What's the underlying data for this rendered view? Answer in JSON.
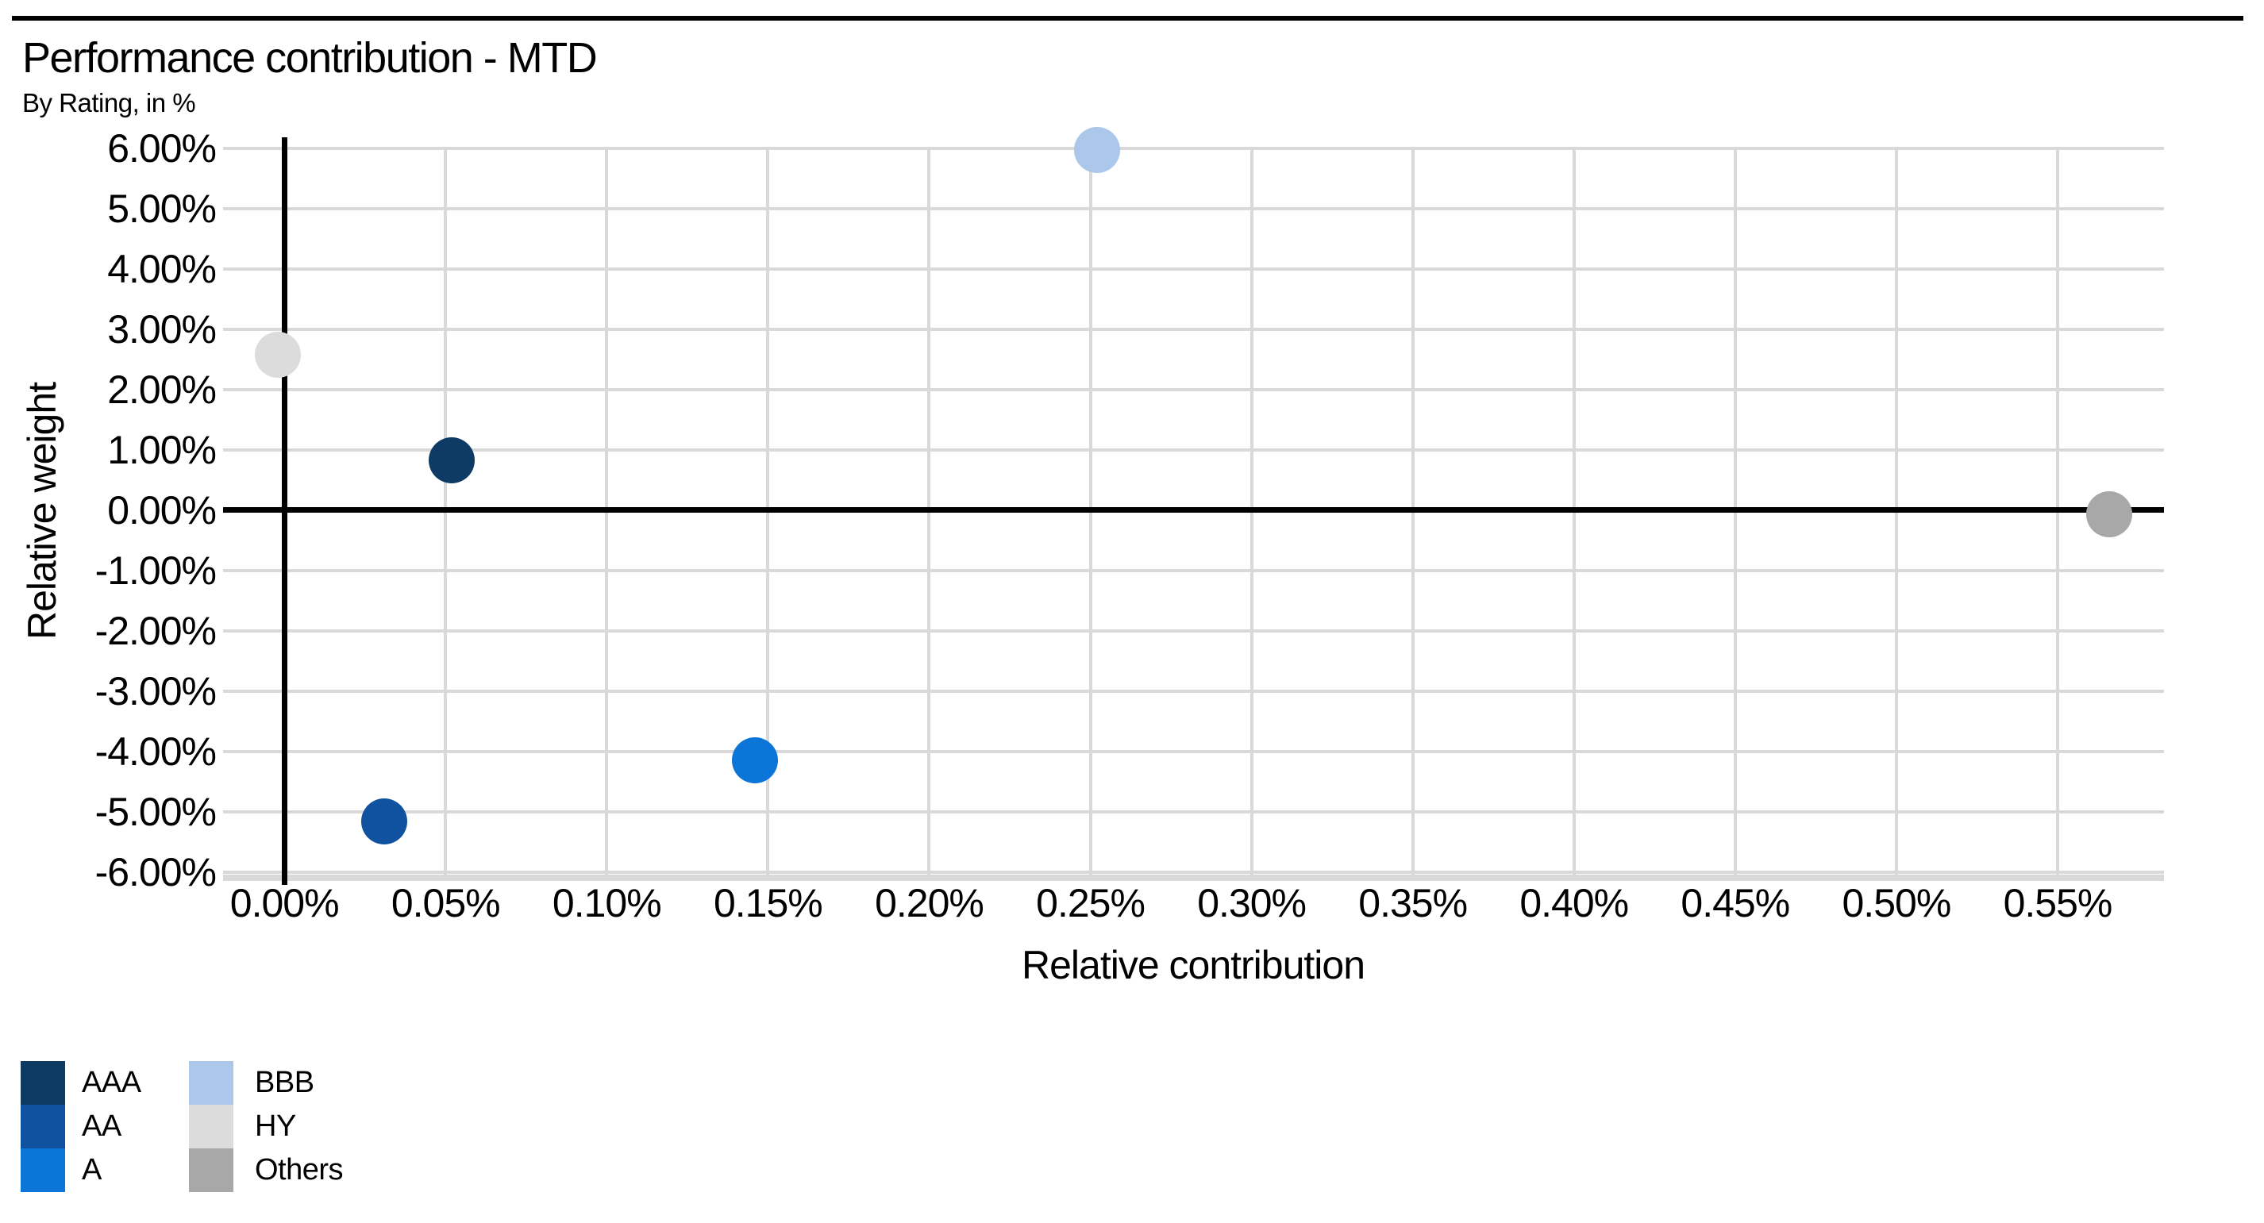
{
  "header": {
    "title": "Performance contribution - MTD",
    "subtitle": "By Rating, in %"
  },
  "chart_data": {
    "type": "scatter",
    "title": "Performance contribution - MTD",
    "subtitle": "By Rating, in %",
    "xlabel": "Relative contribution",
    "ylabel": "Relative weight",
    "grid": true,
    "legend_position": "bottom-left",
    "x_axis": {
      "min": -0.019,
      "max": 0.583,
      "unit": "%",
      "ticks": [
        {
          "value": 0.0,
          "label": "0.00%"
        },
        {
          "value": 0.05,
          "label": "0.05%"
        },
        {
          "value": 0.1,
          "label": "0.10%"
        },
        {
          "value": 0.15,
          "label": "0.15%"
        },
        {
          "value": 0.2,
          "label": "0.20%"
        },
        {
          "value": 0.25,
          "label": "0.25%"
        },
        {
          "value": 0.3,
          "label": "0.30%"
        },
        {
          "value": 0.35,
          "label": "0.35%"
        },
        {
          "value": 0.4,
          "label": "0.40%"
        },
        {
          "value": 0.45,
          "label": "0.45%"
        },
        {
          "value": 0.5,
          "label": "0.50%"
        },
        {
          "value": 0.55,
          "label": "0.55%"
        }
      ]
    },
    "y_axis": {
      "min": -6.05,
      "max": 6.02,
      "unit": "%",
      "ticks": [
        {
          "value": 6,
          "label": "6.00%"
        },
        {
          "value": 5,
          "label": "5.00%"
        },
        {
          "value": 4,
          "label": "4.00%"
        },
        {
          "value": 3,
          "label": "3.00%"
        },
        {
          "value": 2,
          "label": "2.00%"
        },
        {
          "value": 1,
          "label": "1.00%"
        },
        {
          "value": 0,
          "label": "0.00%"
        },
        {
          "value": -1,
          "label": "-1.00%"
        },
        {
          "value": -2,
          "label": "-2.00%"
        },
        {
          "value": -3,
          "label": "-3.00%"
        },
        {
          "value": -4,
          "label": "-4.00%"
        },
        {
          "value": -5,
          "label": "-5.00%"
        },
        {
          "value": -6,
          "label": "-6.00%"
        }
      ]
    },
    "series": [
      {
        "name": "AAA",
        "color": "#0d3b63",
        "x": 0.052,
        "y": 0.83
      },
      {
        "name": "AA",
        "color": "#10529f",
        "x": 0.031,
        "y": -5.15
      },
      {
        "name": "A",
        "color": "#0b75d8",
        "x": 0.146,
        "y": -4.15
      },
      {
        "name": "BBB",
        "color": "#abc7ea",
        "x": 0.252,
        "y": 5.97
      },
      {
        "name": "HY",
        "color": "#dcdcdc",
        "x": -0.002,
        "y": 2.57
      },
      {
        "name": "Others",
        "color": "#a8a8a8",
        "x": 0.566,
        "y": -0.07
      }
    ],
    "legend_columns": [
      [
        "AAA",
        "AA",
        "A"
      ],
      [
        "BBB",
        "HY",
        "Others"
      ]
    ]
  },
  "colors": {
    "background": "#ffffff",
    "gridline": "#d9d9d9",
    "axis_baseline": "#d9d9d9",
    "zero_line": "#000000",
    "top_rule": "#000000",
    "text": "#000000"
  }
}
